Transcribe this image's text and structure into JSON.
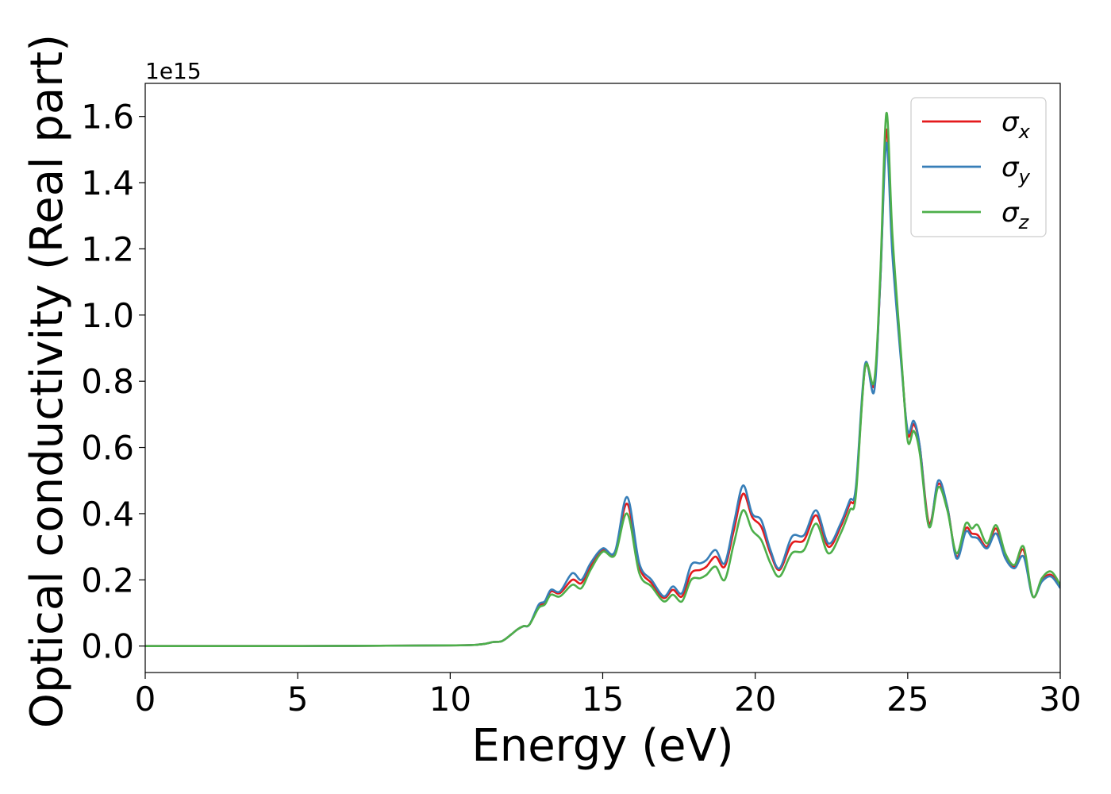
{
  "chart_data": {
    "type": "line",
    "xlabel": "Energy (eV)",
    "ylabel": "Optical conductivity (Real part)",
    "y_offset_label": "1e15",
    "xlim": [
      0,
      30
    ],
    "ylim": [
      -0.08,
      1.7
    ],
    "x_ticks": [
      0,
      5,
      10,
      15,
      20,
      25,
      30
    ],
    "x_tick_labels": [
      "0",
      "5",
      "10",
      "15",
      "20",
      "25",
      "30"
    ],
    "y_ticks": [
      0.0,
      0.2,
      0.4,
      0.6,
      0.8,
      1.0,
      1.2,
      1.4,
      1.6
    ],
    "y_tick_labels": [
      "0.0",
      "0.2",
      "0.4",
      "0.6",
      "0.8",
      "1.0",
      "1.2",
      "1.4",
      "1.6"
    ],
    "grid": false,
    "legend_position": "top-right",
    "series": [
      {
        "name": "σx",
        "legend_symbol": "σ",
        "legend_subscript": "x",
        "color": "#e41a1c",
        "x": [
          0,
          5,
          10,
          11,
          11.4,
          11.7,
          12,
          12.2,
          12.4,
          12.6,
          12.9,
          13.1,
          13.3,
          13.6,
          14.0,
          14.3,
          14.6,
          15.0,
          15.4,
          15.8,
          16.2,
          16.6,
          17.0,
          17.3,
          17.6,
          17.9,
          18.2,
          18.4,
          18.7,
          19.0,
          19.3,
          19.6,
          19.9,
          20.2,
          20.5,
          20.8,
          21.2,
          21.6,
          22.0,
          22.4,
          22.8,
          23.1,
          23.3,
          23.6,
          23.9,
          24.1,
          24.3,
          24.5,
          24.8,
          25.0,
          25.2,
          25.4,
          25.7,
          26.0,
          26.3,
          26.6,
          26.9,
          27.1,
          27.3,
          27.6,
          27.9,
          28.2,
          28.5,
          28.8,
          29.1,
          29.4,
          29.7,
          30
        ],
        "values": [
          0,
          0,
          0.002,
          0.005,
          0.012,
          0.015,
          0.035,
          0.05,
          0.06,
          0.065,
          0.12,
          0.13,
          0.165,
          0.16,
          0.2,
          0.19,
          0.24,
          0.29,
          0.28,
          0.43,
          0.24,
          0.19,
          0.145,
          0.17,
          0.15,
          0.22,
          0.23,
          0.24,
          0.27,
          0.24,
          0.35,
          0.46,
          0.39,
          0.36,
          0.28,
          0.23,
          0.31,
          0.32,
          0.395,
          0.3,
          0.36,
          0.43,
          0.47,
          0.84,
          0.79,
          1.1,
          1.56,
          1.2,
          0.85,
          0.64,
          0.67,
          0.6,
          0.37,
          0.49,
          0.42,
          0.27,
          0.355,
          0.34,
          0.335,
          0.3,
          0.355,
          0.27,
          0.24,
          0.29,
          0.15,
          0.2,
          0.215,
          0.18
        ]
      },
      {
        "name": "σy",
        "legend_symbol": "σ",
        "legend_subscript": "y",
        "color": "#377eb8",
        "x": [
          0,
          5,
          10,
          11,
          11.4,
          11.7,
          12,
          12.2,
          12.4,
          12.6,
          12.9,
          13.1,
          13.3,
          13.6,
          14.0,
          14.3,
          14.6,
          15.0,
          15.4,
          15.8,
          16.2,
          16.6,
          17.0,
          17.3,
          17.6,
          17.9,
          18.2,
          18.4,
          18.7,
          19.0,
          19.3,
          19.6,
          19.9,
          20.2,
          20.5,
          20.8,
          21.2,
          21.6,
          22.0,
          22.4,
          22.8,
          23.1,
          23.3,
          23.6,
          23.9,
          24.1,
          24.3,
          24.5,
          24.8,
          25.0,
          25.2,
          25.4,
          25.7,
          26.0,
          26.3,
          26.6,
          26.9,
          27.1,
          27.3,
          27.6,
          27.9,
          28.2,
          28.5,
          28.8,
          29.1,
          29.4,
          29.7,
          30
        ],
        "values": [
          0,
          0,
          0.002,
          0.005,
          0.012,
          0.015,
          0.035,
          0.05,
          0.06,
          0.065,
          0.125,
          0.135,
          0.17,
          0.165,
          0.22,
          0.2,
          0.25,
          0.295,
          0.285,
          0.45,
          0.25,
          0.2,
          0.15,
          0.18,
          0.16,
          0.245,
          0.25,
          0.26,
          0.29,
          0.25,
          0.37,
          0.485,
          0.4,
          0.38,
          0.29,
          0.235,
          0.33,
          0.335,
          0.41,
          0.31,
          0.37,
          0.44,
          0.48,
          0.85,
          0.77,
          1.1,
          1.52,
          1.18,
          0.84,
          0.65,
          0.68,
          0.6,
          0.36,
          0.5,
          0.42,
          0.265,
          0.345,
          0.33,
          0.325,
          0.295,
          0.34,
          0.265,
          0.235,
          0.27,
          0.15,
          0.195,
          0.21,
          0.175
        ]
      },
      {
        "name": "σz",
        "legend_symbol": "σ",
        "legend_subscript": "z",
        "color": "#4daf4a",
        "x": [
          0,
          5,
          10,
          11,
          11.4,
          11.7,
          12,
          12.2,
          12.4,
          12.6,
          12.9,
          13.1,
          13.3,
          13.6,
          14.0,
          14.3,
          14.6,
          15.0,
          15.4,
          15.8,
          16.2,
          16.6,
          17.0,
          17.3,
          17.6,
          17.9,
          18.2,
          18.4,
          18.7,
          19.0,
          19.3,
          19.6,
          19.9,
          20.2,
          20.5,
          20.8,
          21.2,
          21.6,
          22.0,
          22.4,
          22.8,
          23.1,
          23.3,
          23.6,
          23.9,
          24.1,
          24.3,
          24.5,
          24.8,
          25.0,
          25.2,
          25.4,
          25.7,
          26.0,
          26.3,
          26.6,
          26.9,
          27.1,
          27.3,
          27.6,
          27.9,
          28.2,
          28.5,
          28.8,
          29.1,
          29.4,
          29.7,
          30
        ],
        "values": [
          0,
          0,
          0.002,
          0.005,
          0.012,
          0.015,
          0.035,
          0.05,
          0.06,
          0.065,
          0.115,
          0.125,
          0.155,
          0.15,
          0.185,
          0.175,
          0.23,
          0.285,
          0.275,
          0.4,
          0.22,
          0.18,
          0.135,
          0.155,
          0.135,
          0.2,
          0.205,
          0.215,
          0.24,
          0.2,
          0.31,
          0.41,
          0.35,
          0.32,
          0.25,
          0.21,
          0.28,
          0.29,
          0.37,
          0.28,
          0.34,
          0.41,
          0.455,
          0.84,
          0.8,
          1.12,
          1.61,
          1.24,
          0.86,
          0.62,
          0.65,
          0.58,
          0.36,
          0.48,
          0.41,
          0.28,
          0.37,
          0.355,
          0.365,
          0.31,
          0.365,
          0.28,
          0.245,
          0.3,
          0.15,
          0.205,
          0.225,
          0.185
        ]
      }
    ]
  }
}
